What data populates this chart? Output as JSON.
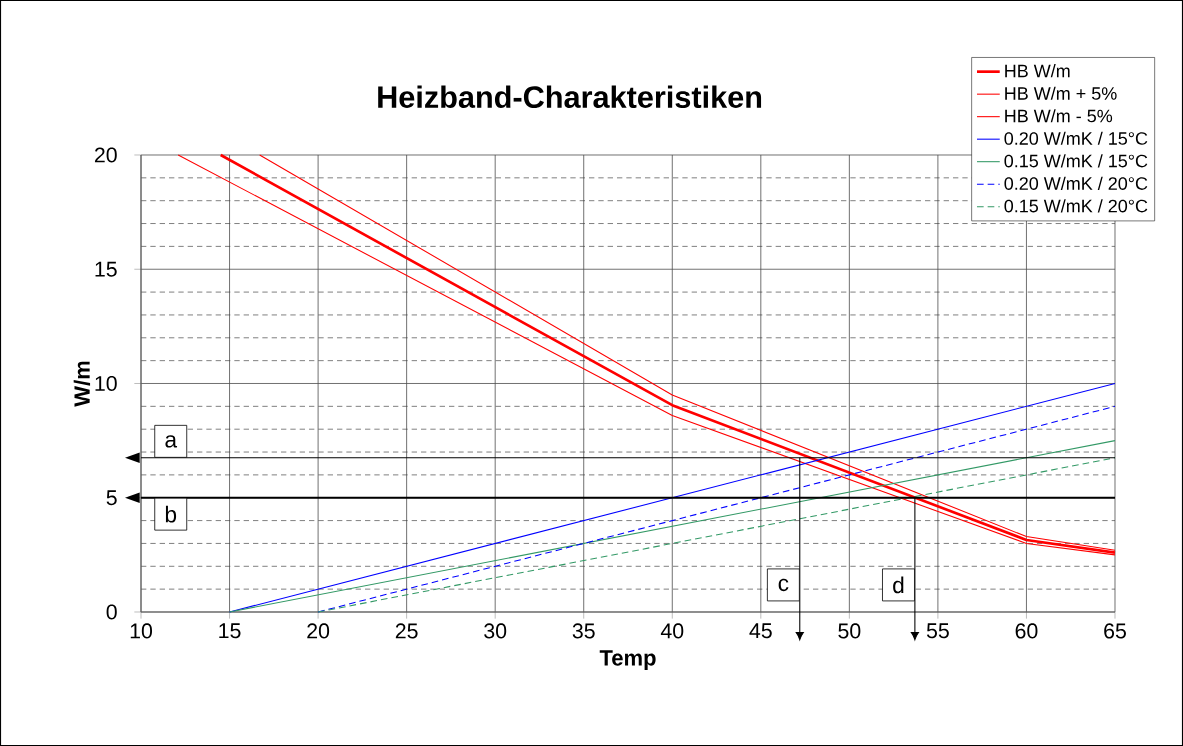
{
  "chart_data": {
    "type": "line",
    "title": "Heizband-Charakteristiken",
    "xlabel": "Temp",
    "ylabel": "W/m",
    "xlim": [
      10,
      65
    ],
    "ylim": [
      0,
      20
    ],
    "xticks": [
      10,
      15,
      20,
      25,
      30,
      35,
      40,
      45,
      50,
      55,
      60,
      65
    ],
    "yticks": [
      0,
      5,
      10,
      15,
      20
    ],
    "grid": true,
    "legend": "top right",
    "marker": "none",
    "series": [
      {
        "name": "HB W/m",
        "color": "#ff0000",
        "x": [
          14.5,
          40,
          60,
          65
        ],
        "values": [
          20,
          9.05,
          3.15,
          2.6
        ]
      },
      {
        "name": "HB W/m + 5%",
        "color": "#ff0000",
        "x": [
          16.7,
          40,
          60,
          65
        ],
        "values": [
          20,
          9.5,
          3.3,
          2.7
        ]
      },
      {
        "name": "HB W/m - 5%",
        "color": "#ff0000",
        "x": [
          12.1,
          40,
          60,
          65
        ],
        "values": [
          20,
          8.6,
          3.0,
          2.5
        ]
      },
      {
        "name": "0.20 W/mK / 15°C",
        "color": "#0000ff",
        "x": [
          15,
          65
        ],
        "values": [
          0,
          10
        ]
      },
      {
        "name": "0.15 W/mK / 15°C",
        "color": "#339966",
        "x": [
          15,
          65
        ],
        "values": [
          0,
          7.5
        ]
      },
      {
        "name": "0.20 W/mK / 20°C",
        "color": "#0000ff",
        "line_style": "dashed",
        "x": [
          20,
          65
        ],
        "values": [
          0,
          9
        ]
      },
      {
        "name": "0.15 W/mK / 20°C",
        "color": "#339966",
        "line_style": "dashed",
        "x": [
          20,
          65
        ],
        "values": [
          0,
          6.75
        ]
      }
    ],
    "ref_lines": [
      {
        "axis": "y",
        "value": 6.75,
        "label": "a"
      },
      {
        "axis": "y",
        "value": 5,
        "label": "b"
      },
      {
        "axis": "x",
        "value": 47.2,
        "label": "c"
      },
      {
        "axis": "x",
        "value": 53.7,
        "label": "d"
      }
    ]
  }
}
